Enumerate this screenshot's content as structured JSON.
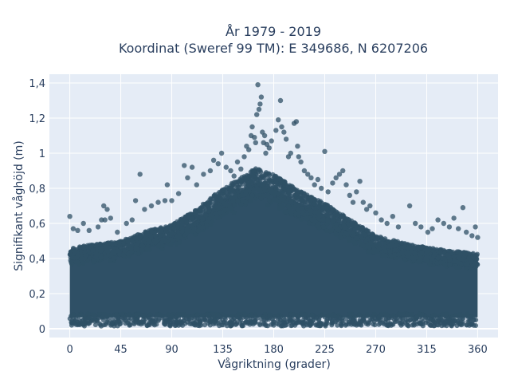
{
  "chart_data": {
    "type": "scatter",
    "title": [
      "År 1979 - 2019",
      "Koordinat (Sweref 99 TM): E 349686, N 6207206"
    ],
    "xlabel": "Vågriktning (grader)",
    "ylabel": "Signifikant våghöjd (m)",
    "xlim": [
      -18,
      378
    ],
    "ylim": [
      -0.05,
      1.45
    ],
    "xticks": [
      0,
      45,
      90,
      135,
      180,
      225,
      270,
      315,
      360
    ],
    "yticks": [
      0,
      0.2,
      0.4,
      0.6,
      0.8,
      1,
      1.2,
      1.4
    ],
    "ytick_labels": [
      "0",
      "0,2",
      "0,4",
      "0,6",
      "0,8",
      "1",
      "1,2",
      "1,4"
    ],
    "grid": true,
    "legend": false,
    "envelope": [
      [
        0,
        0.45
      ],
      [
        20,
        0.47
      ],
      [
        45,
        0.49
      ],
      [
        70,
        0.55
      ],
      [
        90,
        0.58
      ],
      [
        110,
        0.66
      ],
      [
        130,
        0.76
      ],
      [
        150,
        0.84
      ],
      [
        165,
        0.9
      ],
      [
        180,
        0.86
      ],
      [
        200,
        0.78
      ],
      [
        225,
        0.7
      ],
      [
        250,
        0.6
      ],
      [
        270,
        0.52
      ],
      [
        300,
        0.47
      ],
      [
        330,
        0.44
      ],
      [
        360,
        0.42
      ]
    ],
    "outliers": [
      [
        0,
        0.64
      ],
      [
        3,
        0.57
      ],
      [
        7,
        0.56
      ],
      [
        12,
        0.6
      ],
      [
        17,
        0.56
      ],
      [
        25,
        0.58
      ],
      [
        28,
        0.62
      ],
      [
        31,
        0.62
      ],
      [
        36,
        0.63
      ],
      [
        30,
        0.7
      ],
      [
        33,
        0.68
      ],
      [
        42,
        0.55
      ],
      [
        50,
        0.6
      ],
      [
        55,
        0.62
      ],
      [
        58,
        0.73
      ],
      [
        62,
        0.88
      ],
      [
        66,
        0.68
      ],
      [
        72,
        0.7
      ],
      [
        78,
        0.72
      ],
      [
        84,
        0.73
      ],
      [
        86,
        0.82
      ],
      [
        90,
        0.73
      ],
      [
        96,
        0.77
      ],
      [
        101,
        0.93
      ],
      [
        104,
        0.86
      ],
      [
        108,
        0.92
      ],
      [
        112,
        0.82
      ],
      [
        118,
        0.88
      ],
      [
        124,
        0.9
      ],
      [
        127,
        0.96
      ],
      [
        131,
        0.94
      ],
      [
        134,
        1.0
      ],
      [
        138,
        0.92
      ],
      [
        142,
        0.9
      ],
      [
        145,
        0.87
      ],
      [
        148,
        0.95
      ],
      [
        151,
        0.91
      ],
      [
        154,
        0.98
      ],
      [
        156,
        1.04
      ],
      [
        158,
        1.02
      ],
      [
        160,
        1.1
      ],
      [
        161,
        1.15
      ],
      [
        163,
        1.09
      ],
      [
        164,
        1.06
      ],
      [
        165,
        1.22
      ],
      [
        166,
        1.39
      ],
      [
        167,
        1.25
      ],
      [
        168,
        1.28
      ],
      [
        169,
        1.32
      ],
      [
        170,
        1.12
      ],
      [
        171,
        1.06
      ],
      [
        172,
        1.1
      ],
      [
        173,
        1.0
      ],
      [
        174,
        1.05
      ],
      [
        176,
        1.03
      ],
      [
        178,
        1.07
      ],
      [
        182,
        1.13
      ],
      [
        184,
        1.19
      ],
      [
        186,
        1.3
      ],
      [
        187,
        1.15
      ],
      [
        189,
        1.12
      ],
      [
        191,
        1.08
      ],
      [
        193,
        0.98
      ],
      [
        195,
        1.0
      ],
      [
        198,
        1.17
      ],
      [
        200,
        1.18
      ],
      [
        201,
        1.04
      ],
      [
        202,
        0.98
      ],
      [
        204,
        0.95
      ],
      [
        207,
        0.9
      ],
      [
        210,
        0.88
      ],
      [
        213,
        0.86
      ],
      [
        216,
        0.82
      ],
      [
        219,
        0.85
      ],
      [
        222,
        0.8
      ],
      [
        225,
        1.01
      ],
      [
        228,
        0.78
      ],
      [
        232,
        0.83
      ],
      [
        235,
        0.86
      ],
      [
        238,
        0.88
      ],
      [
        241,
        0.9
      ],
      [
        244,
        0.82
      ],
      [
        247,
        0.76
      ],
      [
        250,
        0.72
      ],
      [
        253,
        0.78
      ],
      [
        256,
        0.84
      ],
      [
        259,
        0.72
      ],
      [
        262,
        0.68
      ],
      [
        265,
        0.7
      ],
      [
        270,
        0.66
      ],
      [
        275,
        0.62
      ],
      [
        280,
        0.6
      ],
      [
        285,
        0.64
      ],
      [
        290,
        0.58
      ],
      [
        300,
        0.7
      ],
      [
        305,
        0.6
      ],
      [
        310,
        0.58
      ],
      [
        316,
        0.55
      ],
      [
        320,
        0.57
      ],
      [
        325,
        0.62
      ],
      [
        330,
        0.6
      ],
      [
        335,
        0.58
      ],
      [
        339,
        0.63
      ],
      [
        343,
        0.57
      ],
      [
        347,
        0.69
      ],
      [
        350,
        0.55
      ],
      [
        355,
        0.53
      ],
      [
        358,
        0.58
      ],
      [
        360,
        0.52
      ]
    ]
  },
  "colors": {
    "marker": "#2f5066",
    "plot_bg": "#e5ecf6",
    "grid": "#ffffff",
    "text": "#2a3f5f"
  }
}
